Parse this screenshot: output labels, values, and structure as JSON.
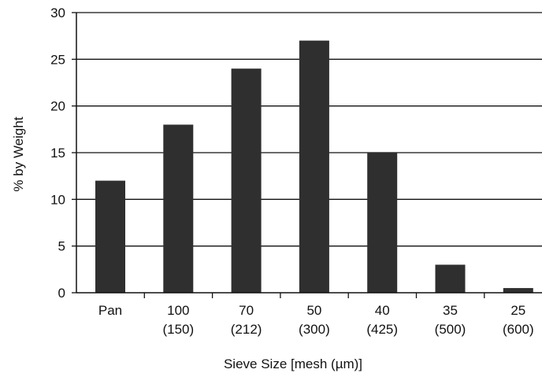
{
  "chart_data": {
    "type": "bar",
    "categories": [
      "Pan",
      "100\n(150)",
      "70\n(212)",
      "50\n(300)",
      "40\n(425)",
      "35\n(500)",
      "25\n(600)"
    ],
    "values": [
      12,
      18,
      24,
      27,
      15,
      3,
      0.5
    ],
    "title": "",
    "xlabel": "Sieve Size [mesh (µm)]",
    "ylabel": "% by Weight",
    "ylim": [
      0,
      30
    ],
    "yticks": [
      0,
      5,
      10,
      15,
      20,
      25,
      30
    ],
    "grid": true,
    "bar_color": "#2f2f2f"
  }
}
